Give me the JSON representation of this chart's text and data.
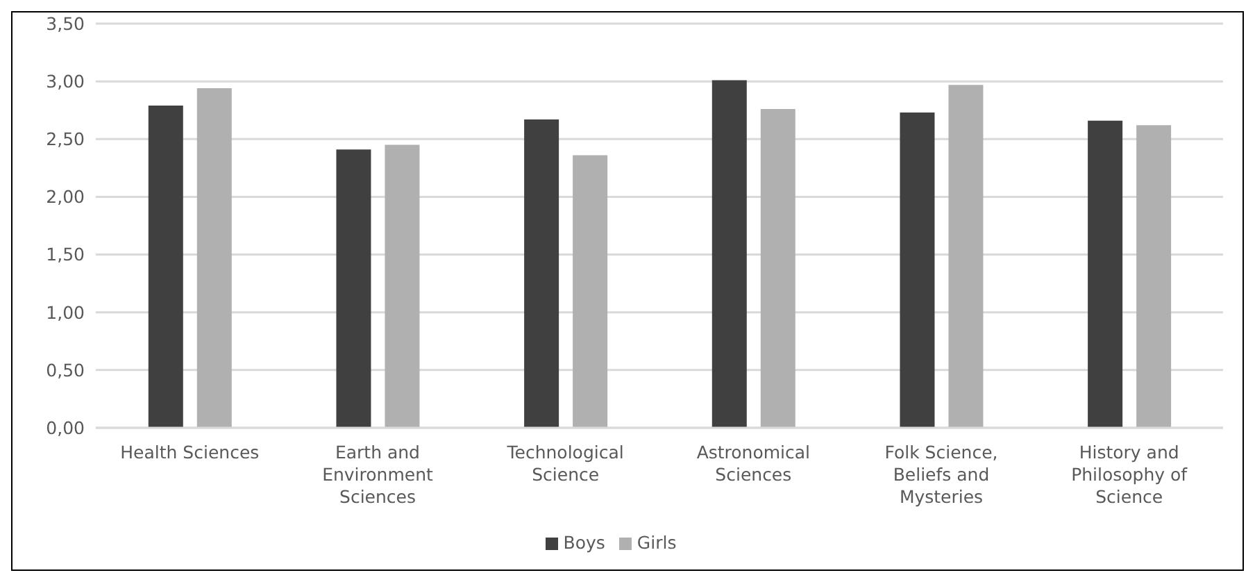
{
  "chart_data": {
    "type": "bar",
    "categories": [
      "Health Sciences",
      "Earth and Environment Sciences",
      "Technological Science",
      "Astronomical Sciences",
      "Folk Science, Beliefs and Mysteries",
      "History and Philosophy of Science"
    ],
    "series": [
      {
        "name": "Boys",
        "color": "#404040",
        "values": [
          2.79,
          2.41,
          2.67,
          3.01,
          2.73,
          2.66
        ]
      },
      {
        "name": "Girls",
        "color": "#b0b0b0",
        "values": [
          2.94,
          2.45,
          2.36,
          2.76,
          2.97,
          2.62
        ]
      }
    ],
    "ylim": [
      0,
      3.5
    ],
    "yticks": [
      {
        "value": 0,
        "label": "0,00"
      },
      {
        "value": 0.5,
        "label": "0,50"
      },
      {
        "value": 1,
        "label": "1,00"
      },
      {
        "value": 1.5,
        "label": "1,50"
      },
      {
        "value": 2,
        "label": "2,00"
      },
      {
        "value": 2.5,
        "label": "2,50"
      },
      {
        "value": 3,
        "label": "3,00"
      },
      {
        "value": 3.5,
        "label": "3,50"
      }
    ],
    "grid": "y",
    "legend": "bottom"
  }
}
